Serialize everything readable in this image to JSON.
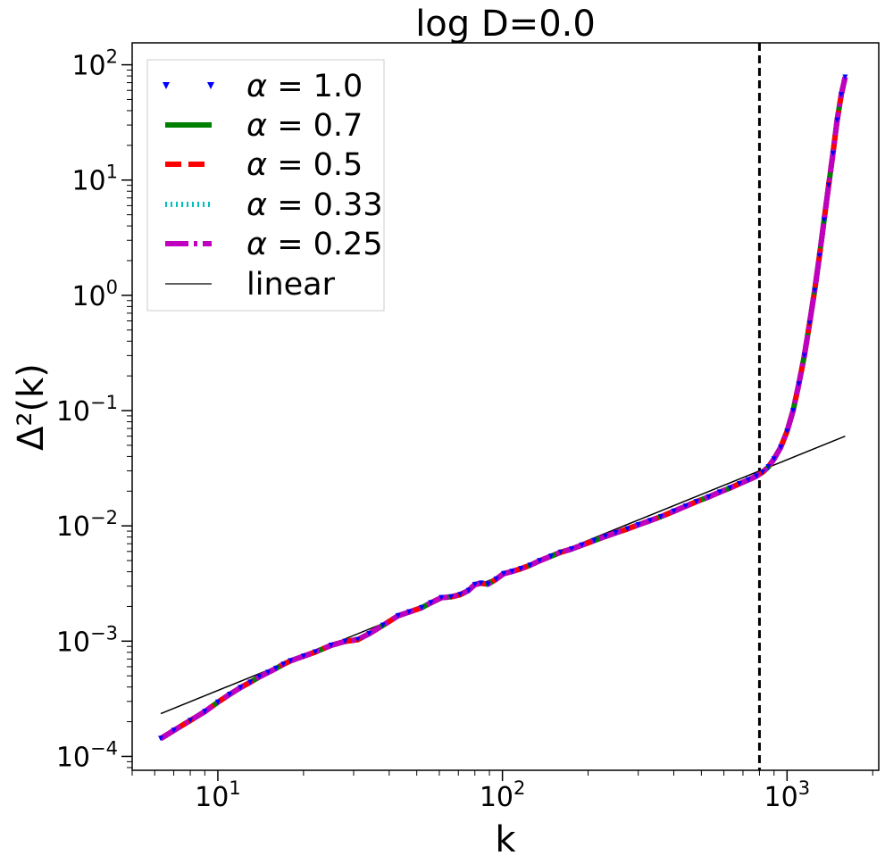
{
  "chart_data": {
    "type": "line",
    "title": "log D=0.0",
    "xlabel": "k",
    "ylabel": "Δ²(k)",
    "xscale": "log",
    "yscale": "log",
    "xlim": [
      5,
      2100
    ],
    "ylim": [
      7.58e-05,
      155
    ],
    "xticks": [
      {
        "value": 10,
        "base": "10",
        "exp": "1"
      },
      {
        "value": 100,
        "base": "10",
        "exp": "2"
      },
      {
        "value": 1000,
        "base": "10",
        "exp": "3"
      }
    ],
    "yticks": [
      {
        "value": 0.0001,
        "base": "10",
        "exp": "−4"
      },
      {
        "value": 0.001,
        "base": "10",
        "exp": "−3"
      },
      {
        "value": 0.01,
        "base": "10",
        "exp": "−2"
      },
      {
        "value": 0.1,
        "base": "10",
        "exp": "−1"
      },
      {
        "value": 1,
        "base": "10",
        "exp": "0"
      },
      {
        "value": 10,
        "base": "10",
        "exp": "1"
      },
      {
        "value": 100,
        "base": "10",
        "exp": "2"
      }
    ],
    "vline": {
      "x": 800,
      "style": "dashed",
      "color": "#000000"
    },
    "legend_position": "top-left",
    "curve": {
      "x": [
        6.3,
        7,
        8,
        9,
        10,
        11,
        12,
        13,
        14,
        15,
        16,
        17,
        18,
        20,
        22,
        25,
        28,
        31,
        34,
        38,
        43,
        47,
        52,
        56,
        61,
        66,
        71,
        76,
        80,
        84,
        89,
        95,
        101,
        108,
        116,
        125,
        135,
        148,
        160,
        175,
        190,
        210,
        230,
        250,
        275,
        300,
        330,
        360,
        400,
        440,
        480,
        530,
        580,
        630,
        680,
        730,
        780,
        820,
        860,
        900,
        950,
        1000,
        1050,
        1100,
        1150,
        1200,
        1250,
        1300,
        1350,
        1400,
        1450,
        1500,
        1550,
        1600
      ],
      "y": [
        0.000143,
        0.000168,
        0.000205,
        0.000245,
        0.000295,
        0.000345,
        0.000395,
        0.00044,
        0.00049,
        0.000535,
        0.00058,
        0.00063,
        0.000675,
        0.00074,
        0.000805,
        0.00092,
        0.000995,
        0.00103,
        0.00116,
        0.00137,
        0.00166,
        0.00179,
        0.00195,
        0.00215,
        0.00238,
        0.00242,
        0.00253,
        0.00275,
        0.0031,
        0.00318,
        0.00312,
        0.00345,
        0.00385,
        0.00402,
        0.00425,
        0.00455,
        0.00498,
        0.00545,
        0.0059,
        0.0063,
        0.0068,
        0.00745,
        0.0081,
        0.0087,
        0.0094,
        0.0102,
        0.0111,
        0.012,
        0.0134,
        0.0148,
        0.0162,
        0.0178,
        0.0196,
        0.0213,
        0.0232,
        0.025,
        0.027,
        0.0292,
        0.0325,
        0.038,
        0.048,
        0.066,
        0.1,
        0.17,
        0.3,
        0.57,
        1.1,
        2.2,
        4.5,
        9,
        17,
        33,
        55,
        78
      ]
    },
    "linear": {
      "x": [
        6.3,
        1600
      ],
      "y": [
        0.000235,
        0.06
      ]
    },
    "series": [
      {
        "name": "α = 1.0",
        "label_greek": "α",
        "label_value": "1.0",
        "color": "#0000ff",
        "style": "triangles"
      },
      {
        "name": "α = 0.7",
        "label_greek": "α",
        "label_value": "0.7",
        "color": "#008000",
        "style": "solid"
      },
      {
        "name": "α = 0.5",
        "label_greek": "α",
        "label_value": "0.5",
        "color": "#ff0000",
        "style": "dashed"
      },
      {
        "name": "α = 0.33",
        "label_greek": "α",
        "label_value": "0.33",
        "color": "#00bfbf",
        "style": "dotted"
      },
      {
        "name": "α = 0.25",
        "label_greek": "α",
        "label_value": "0.25",
        "color": "#bf00bf",
        "style": "dashdot"
      },
      {
        "name": "linear",
        "color": "#000000",
        "style": "thin"
      }
    ]
  }
}
